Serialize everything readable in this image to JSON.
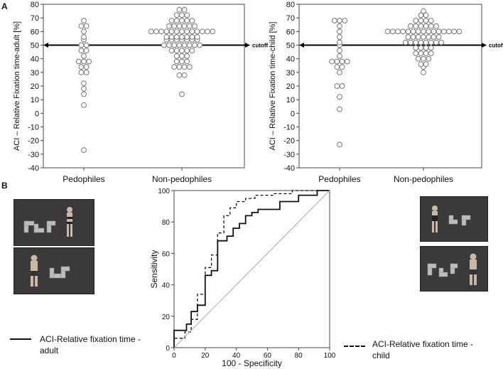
{
  "panels": {
    "a": "A",
    "b": "B"
  },
  "chart_data": [
    {
      "type": "scatter",
      "title": "",
      "ylabel": "ACI – Relative Fixation time-adult  [%]",
      "xlabel": "",
      "categories": [
        "Pedophiles",
        "Non-pedophiles"
      ],
      "ylim": [
        -40,
        80
      ],
      "yticks": [
        80,
        70,
        60,
        50,
        40,
        30,
        20,
        10,
        0,
        -10,
        -20,
        -30,
        -40
      ],
      "cutoff": {
        "value": 50,
        "label": "cutoff"
      },
      "series": [
        {
          "category": "Pedophiles",
          "values": [
            68,
            64,
            64,
            60,
            56,
            54,
            50,
            50,
            46,
            46,
            42,
            38,
            38,
            38,
            34,
            34,
            30,
            30,
            22,
            18,
            14,
            6,
            -27
          ]
        },
        {
          "category": "Non-pedophiles",
          "values": [
            76,
            76,
            72,
            72,
            72,
            68,
            68,
            68,
            68,
            68,
            64,
            64,
            64,
            64,
            64,
            64,
            60,
            60,
            60,
            60,
            60,
            60,
            60,
            60,
            60,
            60,
            60,
            60,
            60,
            56,
            56,
            56,
            56,
            56,
            56,
            56,
            54,
            54,
            54,
            54,
            54,
            54,
            54,
            50,
            50,
            50,
            50,
            50,
            50,
            50,
            50,
            46,
            46,
            46,
            46,
            46,
            42,
            42,
            42,
            38,
            38,
            38,
            34,
            34,
            34,
            34,
            28,
            28,
            14
          ]
        }
      ]
    },
    {
      "type": "scatter",
      "title": "",
      "ylabel": "ACI – Relative Fixation time-child  [%]",
      "xlabel": "",
      "categories": [
        "Pedophiles",
        "Non-pedophiles"
      ],
      "ylim": [
        -40,
        80
      ],
      "yticks": [
        80,
        70,
        60,
        50,
        40,
        30,
        20,
        10,
        0,
        -10,
        -20,
        -30,
        -40
      ],
      "cutoff": {
        "value": 50,
        "label": "cutoff"
      },
      "series": [
        {
          "category": "Pedophiles",
          "values": [
            68,
            68,
            68,
            64,
            60,
            56,
            52,
            50,
            46,
            42,
            38,
            38,
            38,
            38,
            34,
            34,
            30,
            20,
            20,
            12,
            3,
            -23
          ]
        },
        {
          "category": "Non-pedophiles",
          "values": [
            75,
            72,
            72,
            68,
            68,
            68,
            68,
            64,
            64,
            64,
            64,
            64,
            64,
            60,
            60,
            60,
            60,
            60,
            60,
            60,
            60,
            60,
            60,
            60,
            60,
            60,
            60,
            60,
            56,
            56,
            56,
            56,
            56,
            56,
            56,
            52,
            52,
            52,
            52,
            52,
            52,
            52,
            52,
            48,
            48,
            48,
            48,
            44,
            44,
            44,
            44,
            40,
            40,
            40,
            36,
            36,
            34,
            30
          ]
        }
      ]
    },
    {
      "type": "line",
      "title": "",
      "xlabel": "100 - Specificity",
      "ylabel": "Sensitivity",
      "xlim": [
        0,
        100
      ],
      "ylim": [
        0,
        100
      ],
      "xticks": [
        0,
        20,
        40,
        60,
        80,
        100
      ],
      "yticks": [
        0,
        20,
        40,
        60,
        80,
        100
      ],
      "series": [
        {
          "name": "ACI-Relative fixation time - adult",
          "style": "solid",
          "x": [
            0,
            0,
            8,
            8,
            11,
            11,
            15,
            15,
            20,
            20,
            24,
            24,
            28,
            28,
            34,
            34,
            38,
            38,
            42,
            42,
            46,
            46,
            50,
            50,
            54,
            54,
            68,
            68,
            80,
            80,
            92,
            92,
            100
          ],
          "y": [
            0,
            11,
            11,
            15,
            15,
            23,
            23,
            27,
            27,
            46,
            46,
            49,
            49,
            68,
            68,
            71,
            71,
            76,
            76,
            79,
            79,
            84,
            84,
            86,
            86,
            88,
            88,
            93,
            93,
            97,
            97,
            100,
            100
          ]
        },
        {
          "name": "ACI-Relative fixation time - child",
          "style": "dashed",
          "x": [
            0,
            0,
            7,
            7,
            11,
            11,
            15,
            15,
            20,
            20,
            24,
            24,
            28,
            28,
            32,
            32,
            36,
            36,
            40,
            40,
            46,
            46,
            52,
            52,
            64,
            64,
            76,
            76,
            100
          ],
          "y": [
            0,
            6,
            6,
            10,
            10,
            18,
            18,
            34,
            34,
            51,
            51,
            59,
            59,
            73,
            73,
            84,
            84,
            89,
            89,
            93,
            93,
            95,
            95,
            97,
            97,
            98,
            98,
            100,
            100
          ]
        },
        {
          "name": "",
          "style": "reference",
          "x": [
            0,
            100
          ],
          "y": [
            0,
            100
          ]
        }
      ]
    }
  ],
  "legend": {
    "adult": "ACI-Relative fixation time - adult",
    "child": "ACI-Relative fixation time - child"
  },
  "colors": {
    "axis": "#444444",
    "marker_stroke": "#777777",
    "roc_line": "#111111",
    "reference_line": "#aaaaaa",
    "stimulus_bg": "#3a3a3a"
  }
}
